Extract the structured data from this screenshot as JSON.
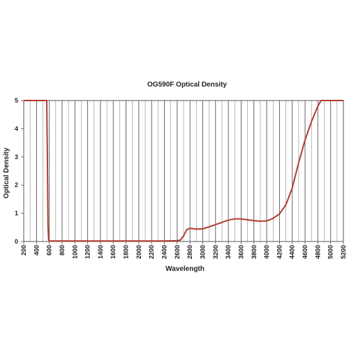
{
  "chart_data": {
    "type": "line",
    "title": "OG590F Optical Density",
    "xlabel": "Wavelength",
    "ylabel": "Optical Density",
    "xlim": [
      200,
      5200
    ],
    "ylim": [
      0,
      5
    ],
    "x_ticks": [
      "200",
      "400",
      "600",
      "800",
      "1000",
      "1200",
      "1400",
      "1600",
      "1800",
      "2000",
      "2200",
      "2400",
      "2600",
      "2800",
      "3000",
      "3200",
      "3400",
      "3600",
      "3800",
      "4000",
      "4200",
      "4400",
      "4600",
      "4800",
      "5000",
      "5200"
    ],
    "y_ticks": [
      "0",
      "1",
      "2",
      "3",
      "4",
      "5"
    ],
    "grid": {
      "vertical_major_step": 200,
      "vertical_minor_step": 100,
      "horizontal": false
    },
    "legend": "none",
    "series": [
      {
        "color": "#b23a2e",
        "points": [
          [
            200,
            5
          ],
          [
            560,
            5
          ],
          [
            570,
            3.0
          ],
          [
            580,
            0.5
          ],
          [
            590,
            0.05
          ],
          [
            600,
            0.02
          ],
          [
            800,
            0.02
          ],
          [
            1200,
            0.02
          ],
          [
            1600,
            0.02
          ],
          [
            2000,
            0.02
          ],
          [
            2400,
            0.02
          ],
          [
            2600,
            0.03
          ],
          [
            2650,
            0.05
          ],
          [
            2700,
            0.2
          ],
          [
            2750,
            0.42
          ],
          [
            2800,
            0.47
          ],
          [
            2900,
            0.44
          ],
          [
            3000,
            0.45
          ],
          [
            3100,
            0.52
          ],
          [
            3200,
            0.6
          ],
          [
            3300,
            0.68
          ],
          [
            3400,
            0.76
          ],
          [
            3500,
            0.8
          ],
          [
            3600,
            0.8
          ],
          [
            3700,
            0.77
          ],
          [
            3800,
            0.74
          ],
          [
            3900,
            0.72
          ],
          [
            4000,
            0.73
          ],
          [
            4100,
            0.82
          ],
          [
            4200,
            0.98
          ],
          [
            4300,
            1.3
          ],
          [
            4400,
            1.9
          ],
          [
            4500,
            2.8
          ],
          [
            4600,
            3.6
          ],
          [
            4700,
            4.25
          ],
          [
            4800,
            4.8
          ],
          [
            4850,
            5
          ],
          [
            5200,
            5
          ]
        ]
      }
    ]
  }
}
